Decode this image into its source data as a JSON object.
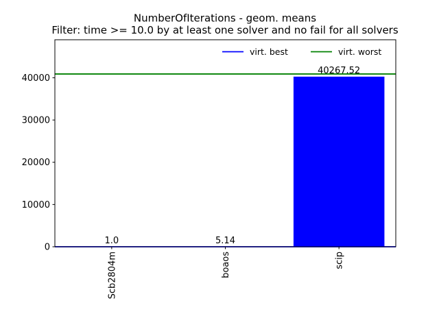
{
  "chart_data": {
    "type": "bar",
    "title": "NumberOfIterations - geom. means",
    "subtitle": "Filter: time >= 10.0 by at least one solver and no fail for all solvers",
    "categories": [
      "Scb2804m",
      "boaos",
      "scip"
    ],
    "values": [
      1.0,
      5.14,
      40267.52
    ],
    "data_labels": [
      "1.0",
      "5.14",
      "40267.52"
    ],
    "bar_color": "#0000ff",
    "ylim": [
      0,
      49000
    ],
    "yticks": [
      0,
      10000,
      20000,
      30000,
      40000
    ],
    "ytick_labels": [
      "0",
      "10000",
      "20000",
      "30000",
      "40000"
    ],
    "xlabel": "",
    "ylabel": "",
    "grid": false,
    "reference_lines": [
      {
        "name": "virt. best",
        "value": 1.0,
        "color": "#0000ff"
      },
      {
        "name": "virt. worst",
        "value": 40900,
        "color": "#008000"
      }
    ],
    "legend": {
      "placement": "top-right",
      "entries": [
        "virt. best",
        "virt. worst"
      ]
    }
  }
}
